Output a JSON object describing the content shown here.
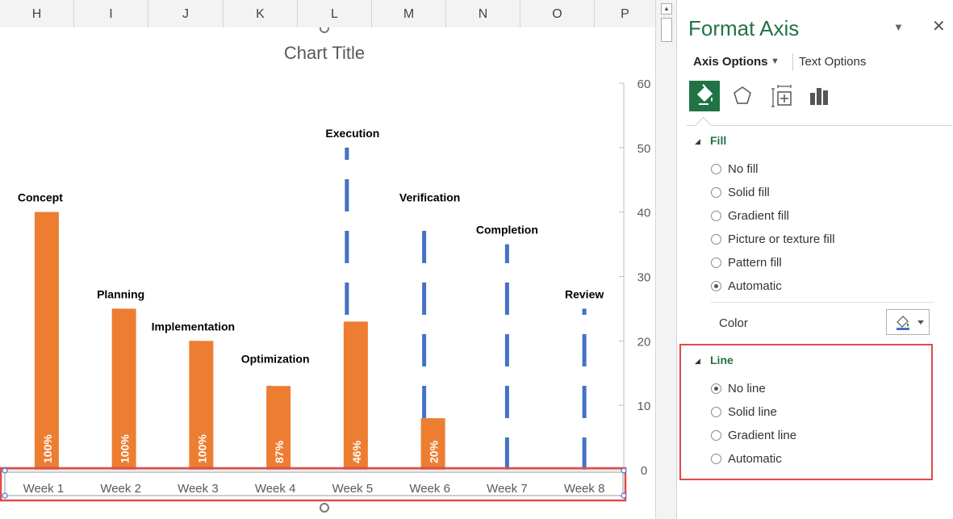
{
  "sheet": {
    "columns": [
      "H",
      "I",
      "J",
      "K",
      "L",
      "M",
      "N",
      "O",
      "P"
    ]
  },
  "chart_data": {
    "type": "bar",
    "title": "Chart Title",
    "categories": [
      "Week 1",
      "Week 2",
      "Week 3",
      "Week 4",
      "Week 5",
      "Week 6",
      "Week 7",
      "Week 8"
    ],
    "task_labels": [
      "Concept",
      "Planning",
      "Implementation",
      "Optimization",
      "Execution",
      "Verification",
      "Completion",
      "Review"
    ],
    "series": [
      {
        "values": [
          40,
          25,
          20,
          15,
          50,
          40,
          35,
          25
        ],
        "style": "dashed-line",
        "color": "#4472c4"
      },
      {
        "values": [
          40,
          25,
          20,
          13,
          23,
          8,
          0,
          0
        ],
        "data_labels": [
          "100%",
          "100%",
          "100%",
          "87%",
          "46%",
          "20%",
          "",
          ""
        ],
        "color": "#ed7d31"
      }
    ],
    "ylim": [
      0,
      60
    ],
    "yticks": [
      0,
      10,
      20,
      30,
      40,
      50,
      60
    ],
    "grid": false,
    "legend": "none"
  },
  "format_pane": {
    "title": "Format Axis",
    "tab_axis_options": "Axis Options",
    "tab_text_options": "Text Options",
    "icons": [
      "fill-line-icon",
      "effects-icon",
      "size-properties-icon",
      "axis-options-icon"
    ],
    "fill": {
      "heading": "Fill",
      "options": [
        "No fill",
        "Solid fill",
        "Gradient fill",
        "Picture or texture fill",
        "Pattern fill",
        "Automatic"
      ],
      "selected": "Automatic",
      "color_label": "Color"
    },
    "line": {
      "heading": "Line",
      "options": [
        "No line",
        "Solid line",
        "Gradient line",
        "Automatic"
      ],
      "selected": "No line"
    },
    "accent_color": "#217346",
    "highlight_color": "#e04a4a"
  }
}
